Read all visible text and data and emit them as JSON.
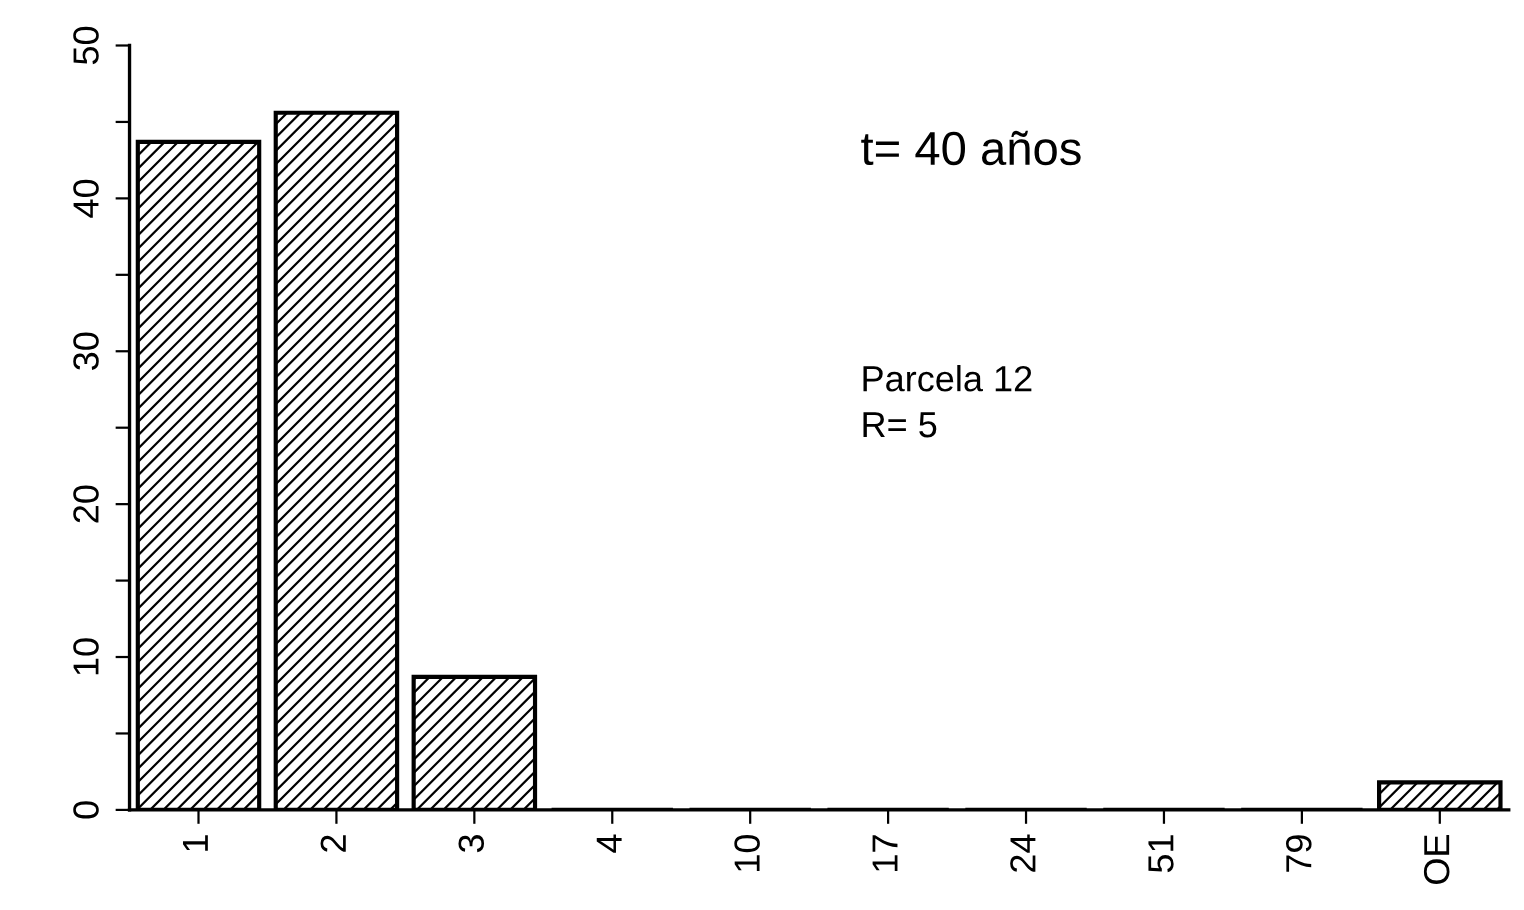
{
  "chart_data": {
    "type": "bar",
    "categories": [
      "1",
      "2",
      "3",
      "4",
      "10",
      "17",
      "24",
      "51",
      "79",
      "OE"
    ],
    "values": [
      43.7,
      45.6,
      8.7,
      0,
      0,
      0,
      0,
      0,
      0,
      1.8
    ],
    "color": "#000000",
    "ylim": [
      0,
      50
    ],
    "yticks": [
      0,
      {
        "value": 5,
        "label": null
      },
      10,
      {
        "value": 15,
        "label": null
      },
      20,
      {
        "value": 25,
        "label": null
      },
      30,
      {
        "value": 35,
        "label": null
      },
      40,
      {
        "value": 45,
        "label": null
      },
      50
    ],
    "annotations": [
      "t= 40 años",
      "Parcela 12",
      "R= 5"
    ],
    "grid": false
  }
}
